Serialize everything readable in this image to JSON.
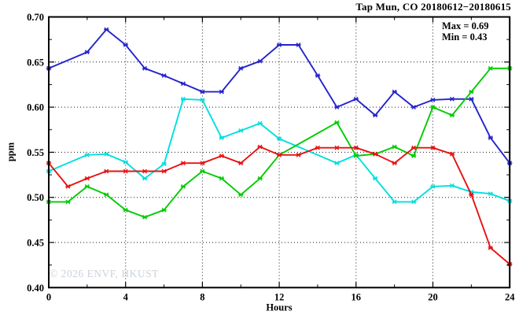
{
  "title": "Tap Mun, CO 20180612−20180615",
  "annotation": {
    "max_label": "Max = 0.69",
    "min_label": "Min = 0.43"
  },
  "watermark": "© 2026 ENVF, HKUST",
  "chart_data": {
    "type": "line",
    "title": "Tap Mun, CO 20180612−20180615",
    "xlabel": "Hours",
    "ylabel": "ppm",
    "xlim": [
      0,
      24
    ],
    "ylim": [
      0.4,
      0.7
    ],
    "grid": "dotted",
    "legend_position": "none",
    "max_annotation": 0.69,
    "min_annotation": 0.43,
    "x_ticks": {
      "values": [
        0,
        4,
        8,
        12,
        16,
        20,
        24
      ],
      "labels": [
        "0",
        "4",
        "8",
        "12",
        "16",
        "20",
        "24"
      ],
      "minor": [
        2,
        6,
        10,
        14,
        18,
        22
      ]
    },
    "y_ticks": {
      "values": [
        0.4,
        0.45,
        0.5,
        0.55,
        0.6,
        0.65,
        0.7
      ],
      "labels": [
        "0.40",
        "0.45",
        "0.50",
        "0.55",
        "0.60",
        "0.65",
        "0.70"
      ],
      "minor": [
        0.425,
        0.475,
        0.525,
        0.575,
        0.625,
        0.675
      ]
    },
    "series": [
      {
        "name": "series-blue",
        "color": "#2323cc",
        "points": [
          [
            0,
            0.643
          ],
          [
            2,
            0.661
          ],
          [
            3,
            0.686
          ],
          [
            4,
            0.669
          ],
          [
            5,
            0.643
          ],
          [
            6,
            0.635
          ],
          [
            7,
            0.626
          ],
          [
            8,
            0.617
          ],
          [
            9,
            0.617
          ],
          [
            10,
            0.643
          ],
          [
            11,
            0.651
          ],
          [
            12,
            0.669
          ],
          [
            13,
            0.669
          ],
          [
            14,
            0.635
          ],
          [
            15,
            0.6
          ],
          [
            16,
            0.609
          ],
          [
            17,
            0.591
          ],
          [
            18,
            0.617
          ],
          [
            19,
            0.6
          ],
          [
            20,
            0.608
          ],
          [
            21,
            0.609
          ],
          [
            22,
            0.609
          ],
          [
            23,
            0.566
          ],
          [
            24,
            0.538
          ]
        ]
      },
      {
        "name": "series-cyan",
        "color": "#00dfdf",
        "points": [
          [
            0,
            0.529
          ],
          [
            2,
            0.547
          ],
          [
            3,
            0.548
          ],
          [
            4,
            0.539
          ],
          [
            5,
            0.521
          ],
          [
            6,
            0.537
          ],
          [
            7,
            0.609
          ],
          [
            8,
            0.608
          ],
          [
            9,
            0.566
          ],
          [
            10,
            0.574
          ],
          [
            11,
            0.582
          ],
          [
            12,
            0.565
          ],
          [
            15,
            0.538
          ],
          [
            16,
            0.547
          ],
          [
            17,
            0.521
          ],
          [
            18,
            0.495
          ],
          [
            19,
            0.495
          ],
          [
            20,
            0.512
          ],
          [
            21,
            0.513
          ],
          [
            22,
            0.506
          ],
          [
            23,
            0.504
          ],
          [
            24,
            0.496
          ]
        ]
      },
      {
        "name": "series-green",
        "color": "#00cc00",
        "points": [
          [
            0,
            0.495
          ],
          [
            1,
            0.495
          ],
          [
            2,
            0.512
          ],
          [
            3,
            0.503
          ],
          [
            4,
            0.486
          ],
          [
            5,
            0.478
          ],
          [
            6,
            0.486
          ],
          [
            7,
            0.512
          ],
          [
            8,
            0.529
          ],
          [
            9,
            0.521
          ],
          [
            10,
            0.503
          ],
          [
            11,
            0.521
          ],
          [
            12,
            0.547
          ],
          [
            15,
            0.583
          ],
          [
            16,
            0.546
          ],
          [
            17,
            0.548
          ],
          [
            18,
            0.556
          ],
          [
            19,
            0.546
          ],
          [
            20,
            0.6
          ],
          [
            21,
            0.591
          ],
          [
            22,
            0.617
          ],
          [
            23,
            0.643
          ],
          [
            24,
            0.643
          ]
        ]
      },
      {
        "name": "series-red",
        "color": "#e81212",
        "points": [
          [
            0,
            0.538
          ],
          [
            1,
            0.512
          ],
          [
            2,
            0.521
          ],
          [
            3,
            0.529
          ],
          [
            4,
            0.529
          ],
          [
            5,
            0.529
          ],
          [
            6,
            0.529
          ],
          [
            7,
            0.538
          ],
          [
            8,
            0.538
          ],
          [
            9,
            0.546
          ],
          [
            10,
            0.538
          ],
          [
            11,
            0.556
          ],
          [
            12,
            0.547
          ],
          [
            13,
            0.547
          ],
          [
            14,
            0.555
          ],
          [
            15,
            0.555
          ],
          [
            16,
            0.555
          ],
          [
            17,
            0.548
          ],
          [
            18,
            0.538
          ],
          [
            19,
            0.555
          ],
          [
            20,
            0.555
          ],
          [
            21,
            0.548
          ],
          [
            22,
            0.503
          ],
          [
            23,
            0.444
          ],
          [
            24,
            0.426
          ]
        ]
      }
    ]
  }
}
